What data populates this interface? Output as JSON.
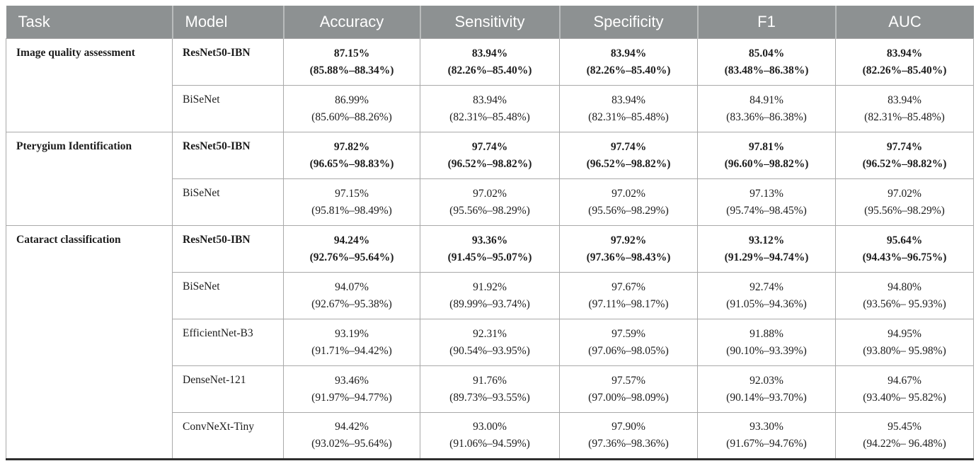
{
  "table": {
    "columns": [
      {
        "key": "task",
        "label": "Task"
      },
      {
        "key": "model",
        "label": "Model"
      },
      {
        "key": "accuracy",
        "label": "Accuracy"
      },
      {
        "key": "sensitivity",
        "label": "Sensitivity"
      },
      {
        "key": "specificity",
        "label": "Specificity"
      },
      {
        "key": "f1",
        "label": "F1"
      },
      {
        "key": "auc",
        "label": "AUC"
      }
    ],
    "colors": {
      "header_bg": "#8d9192",
      "header_text": "#ffffff",
      "body_text": "#1c1c1c",
      "grid_line": "#a9a9a9",
      "bottom_border": "#2e2e2e"
    },
    "groups": [
      {
        "task": "Image quality assessment",
        "rows": [
          {
            "model": "ResNet50-IBN",
            "emphasis": true,
            "metrics": [
              {
                "value": "87.15%",
                "ci": "(85.88%–88.34%)"
              },
              {
                "value": "83.94%",
                "ci": "(82.26%–85.40%)"
              },
              {
                "value": "83.94%",
                "ci": "(82.26%–85.40%)"
              },
              {
                "value": "85.04%",
                "ci": "(83.48%–86.38%)"
              },
              {
                "value": "83.94%",
                "ci": "(82.26%–85.40%)"
              }
            ]
          },
          {
            "model": "BiSeNet",
            "emphasis": false,
            "metrics": [
              {
                "value": "86.99%",
                "ci": "(85.60%–88.26%)"
              },
              {
                "value": "83.94%",
                "ci": "(82.31%–85.48%)"
              },
              {
                "value": "83.94%",
                "ci": "(82.31%–85.48%)"
              },
              {
                "value": "84.91%",
                "ci": "(83.36%–86.38%)"
              },
              {
                "value": "83.94%",
                "ci": "(82.31%–85.48%)"
              }
            ]
          }
        ]
      },
      {
        "task": "Pterygium Identification",
        "rows": [
          {
            "model": "ResNet50-IBN",
            "emphasis": true,
            "metrics": [
              {
                "value": "97.82%",
                "ci": "(96.65%–98.83%)"
              },
              {
                "value": "97.74%",
                "ci": "(96.52%–98.82%)"
              },
              {
                "value": "97.74%",
                "ci": "(96.52%–98.82%)"
              },
              {
                "value": "97.81%",
                "ci": "(96.60%–98.82%)"
              },
              {
                "value": "97.74%",
                "ci": "(96.52%–98.82%)"
              }
            ]
          },
          {
            "model": "BiSeNet",
            "emphasis": false,
            "metrics": [
              {
                "value": "97.15%",
                "ci": "(95.81%–98.49%)"
              },
              {
                "value": "97.02%",
                "ci": "(95.56%–98.29%)"
              },
              {
                "value": "97.02%",
                "ci": "(95.56%–98.29%)"
              },
              {
                "value": "97.13%",
                "ci": "(95.74%–98.45%)"
              },
              {
                "value": "97.02%",
                "ci": "(95.56%–98.29%)"
              }
            ]
          }
        ]
      },
      {
        "task": "Cataract classification",
        "rows": [
          {
            "model": "ResNet50-IBN",
            "emphasis": true,
            "metrics": [
              {
                "value": "94.24%",
                "ci": "(92.76%–95.64%)"
              },
              {
                "value": "93.36%",
                "ci": "(91.45%–95.07%)"
              },
              {
                "value": "97.92%",
                "ci": "(97.36%–98.43%)"
              },
              {
                "value": "93.12%",
                "ci": "(91.29%–94.74%)"
              },
              {
                "value": "95.64%",
                "ci": "(94.43%–96.75%)"
              }
            ]
          },
          {
            "model": "BiSeNet",
            "emphasis": false,
            "metrics": [
              {
                "value": "94.07%",
                "ci": "(92.67%–95.38%)"
              },
              {
                "value": "91.92%",
                "ci": "(89.99%–93.74%)"
              },
              {
                "value": "97.67%",
                "ci": "(97.11%–98.17%)"
              },
              {
                "value": "92.74%",
                "ci": "(91.05%–94.36%)"
              },
              {
                "value": "94.80%",
                "ci": "(93.56%– 95.93%)"
              }
            ]
          },
          {
            "model": "EfficientNet-B3",
            "emphasis": false,
            "metrics": [
              {
                "value": "93.19%",
                "ci": "(91.71%–94.42%)"
              },
              {
                "value": "92.31%",
                "ci": "(90.54%–93.95%)"
              },
              {
                "value": "97.59%",
                "ci": "(97.06%–98.05%)"
              },
              {
                "value": "91.88%",
                "ci": "(90.10%–93.39%)"
              },
              {
                "value": "94.95%",
                "ci": "(93.80%– 95.98%)"
              }
            ]
          },
          {
            "model": "DenseNet-121",
            "emphasis": false,
            "metrics": [
              {
                "value": "93.46%",
                "ci": "(91.97%–94.77%)"
              },
              {
                "value": "91.76%",
                "ci": "(89.73%–93.55%)"
              },
              {
                "value": "97.57%",
                "ci": "(97.00%–98.09%)"
              },
              {
                "value": "92.03%",
                "ci": "(90.14%–93.70%)"
              },
              {
                "value": "94.67%",
                "ci": "(93.40%– 95.82%)"
              }
            ]
          },
          {
            "model": "ConvNeXt-Tiny",
            "emphasis": false,
            "metrics": [
              {
                "value": "94.42%",
                "ci": "(93.02%–95.64%)"
              },
              {
                "value": "93.00%",
                "ci": "(91.06%–94.59%)"
              },
              {
                "value": "97.90%",
                "ci": "(97.36%–98.36%)"
              },
              {
                "value": "93.30%",
                "ci": "(91.67%–94.76%)"
              },
              {
                "value": "95.45%",
                "ci": "(94.22%– 96.48%)"
              }
            ]
          }
        ]
      }
    ]
  }
}
